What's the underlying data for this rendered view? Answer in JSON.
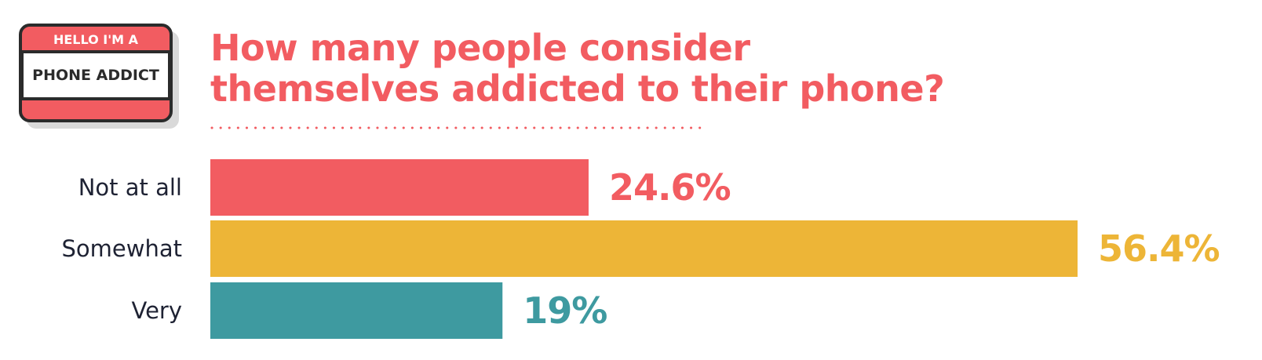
{
  "badge": {
    "top_text": "HELLO I'M A",
    "main_text": "PHONE ADDICT",
    "colors": {
      "red": "#f25c61",
      "outline": "#2b2b2b",
      "shadow": "#d9d9d9"
    }
  },
  "title": {
    "line1": "How many people consider",
    "line2": "themselves addicted to their phone?"
  },
  "chart_data": {
    "type": "bar",
    "orientation": "horizontal",
    "title": "How many people consider themselves addicted to their phone?",
    "categories": [
      "Not at all",
      "Somewhat",
      "Very"
    ],
    "values": [
      24.6,
      56.4,
      19
    ],
    "value_labels": [
      "24.6%",
      "56.4%",
      "19%"
    ],
    "unit": "%",
    "colors": [
      "#f25c61",
      "#edb537",
      "#3e9aa0"
    ],
    "xlim": [
      0,
      56.4
    ],
    "grid": false,
    "legend": "none"
  }
}
